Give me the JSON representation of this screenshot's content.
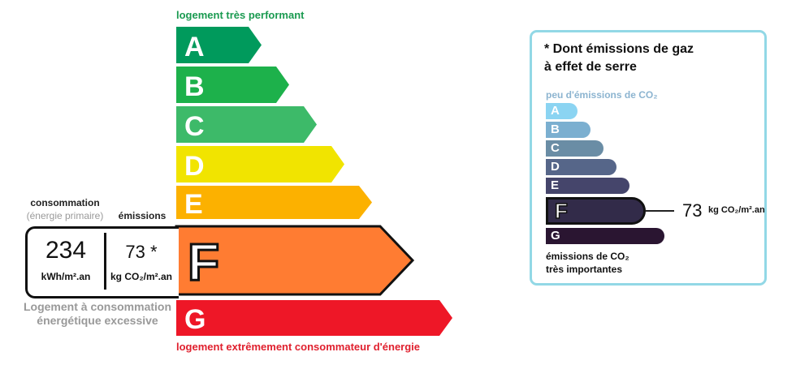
{
  "energy": {
    "top_caption": "logement très performant",
    "bottom_caption": "logement extrêmement consommateur d'énergie",
    "classes": [
      {
        "letter": "A",
        "color": "#009a5c"
      },
      {
        "letter": "B",
        "color": "#1db14b"
      },
      {
        "letter": "C",
        "color": "#3dba69"
      },
      {
        "letter": "D",
        "color": "#f1e400"
      },
      {
        "letter": "E",
        "color": "#fcb100"
      },
      {
        "letter": "F",
        "color": "#ff7c32"
      },
      {
        "letter": "G",
        "color": "#ee1727"
      }
    ],
    "current_class": "F"
  },
  "values": {
    "consumption_label": "consommation",
    "consumption_sub": "(énergie primaire)",
    "emissions_label": "émissions",
    "consumption_value": "234",
    "consumption_unit": "kWh/m².an",
    "emissions_value": "73 *",
    "emissions_unit": "kg CO₂/m².an",
    "excessive_note_1": "Logement à consommation",
    "excessive_note_2": "énergétique excessive"
  },
  "ghg": {
    "title_1": "* Dont émissions de gaz",
    "title_2": "à effet de serre",
    "top_caption": "peu d'émissions de CO₂",
    "bottom_caption_1": "émissions de CO₂",
    "bottom_caption_2": "très importantes",
    "classes": [
      {
        "letter": "A",
        "color": "#8bd4f2"
      },
      {
        "letter": "B",
        "color": "#7bafd0"
      },
      {
        "letter": "C",
        "color": "#6a8da5"
      },
      {
        "letter": "D",
        "color": "#566689"
      },
      {
        "letter": "E",
        "color": "#45456b"
      },
      {
        "letter": "F",
        "color": "#322b49"
      },
      {
        "letter": "G",
        "color": "#2a1531"
      }
    ],
    "current_class": "F",
    "value": "73",
    "unit": "kg CO₂/m².an"
  }
}
